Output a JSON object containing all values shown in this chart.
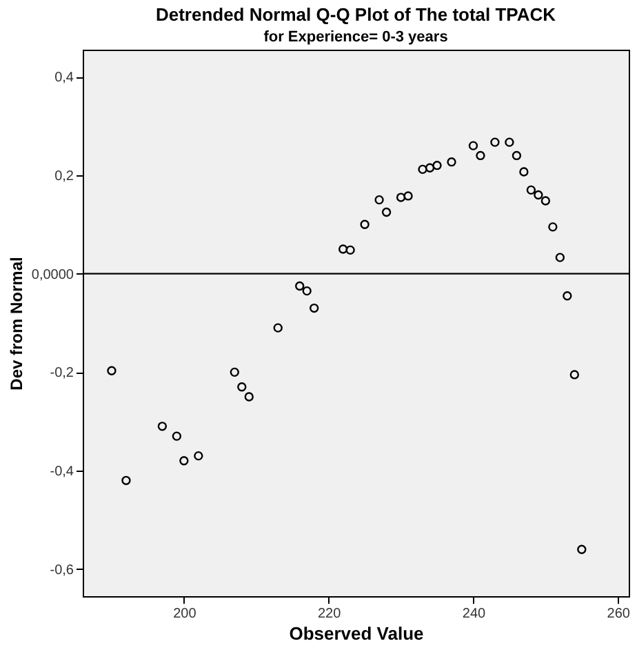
{
  "chart_data": {
    "type": "scatter",
    "title": "Detrended Normal Q-Q Plot of The total TPACK",
    "subtitle": "for Experience= 0-3 years",
    "xlabel": "Observed Value",
    "ylabel": "Dev from Normal",
    "x": [
      190,
      192,
      197,
      199,
      200,
      202,
      207,
      208,
      209,
      213,
      216,
      217,
      218,
      222,
      223,
      225,
      227,
      228,
      230,
      231,
      233,
      234,
      235,
      237,
      240,
      241,
      243,
      245,
      246,
      247,
      248,
      249,
      250,
      251,
      252,
      253,
      254,
      255
    ],
    "values": [
      -0.197,
      -0.42,
      -0.31,
      -0.33,
      -0.38,
      -0.37,
      -0.2,
      -0.23,
      -0.25,
      -0.11,
      -0.025,
      -0.035,
      -0.07,
      0.05,
      0.048,
      0.1,
      0.15,
      0.125,
      0.155,
      0.158,
      0.212,
      0.215,
      0.22,
      0.227,
      0.26,
      0.24,
      0.267,
      0.267,
      0.24,
      0.207,
      0.17,
      0.16,
      0.148,
      0.095,
      0.033,
      -0.045,
      -0.205,
      -0.56
    ],
    "color": "#000000",
    "marker": "circle",
    "grid": false,
    "xlim": [
      186,
      261.5
    ],
    "xticks": [
      200,
      220,
      240,
      260
    ],
    "ylim": [
      -0.655,
      0.455
    ],
    "yticks": [
      {
        "value": -0.6,
        "label": "-0,6"
      },
      {
        "value": -0.4,
        "label": "-0,4"
      },
      {
        "value": -0.2,
        "label": "-0,2"
      },
      {
        "value": 0,
        "label": "0,0000"
      },
      {
        "value": 0.2,
        "label": "0,2"
      },
      {
        "value": 0.4,
        "label": "0,4"
      }
    ],
    "ref_lines": [
      {
        "axis": "y",
        "value": 0,
        "color": "#000000"
      }
    ]
  }
}
